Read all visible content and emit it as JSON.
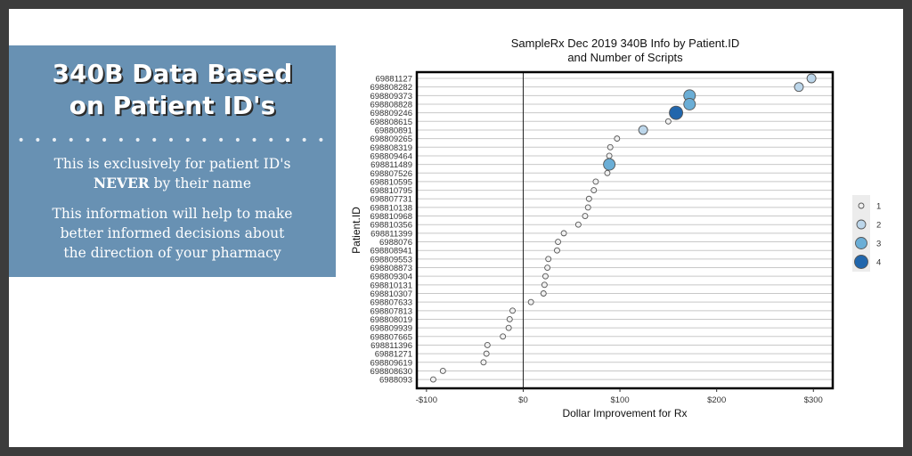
{
  "colors": {
    "frame": "#3c3c3c",
    "panel": "#6891b3",
    "accent_dark": "#2166ac"
  },
  "panel": {
    "title_line1": "340B Data Based",
    "title_line2": "on Patient ID's",
    "divider": "• • • • • • • • • • • • • • • • • • •",
    "line1": "This is exclusively for patient ID's",
    "line2_bold": "NEVER",
    "line2_rest": " by their name",
    "line3": "This information will help to make",
    "line4": "better informed decisions about",
    "line5": "the direction of your pharmacy"
  },
  "chart_data": {
    "type": "scatter",
    "title": "SampleRx Dec 2019 340B Info by Patient.ID",
    "subtitle": "and Number of Scripts",
    "xlabel": "Dollar Improvement for Rx",
    "ylabel": "Patient.ID",
    "xlim": [
      -110,
      320
    ],
    "xticks": [
      -100,
      0,
      100,
      200,
      300
    ],
    "xtick_labels": [
      "-$100",
      "$0",
      "$100",
      "$200",
      "$300"
    ],
    "vline_at": 0,
    "legend": {
      "position": "right",
      "title": "",
      "entries": [
        "1",
        "2",
        "3",
        "4"
      ]
    },
    "size_colors": [
      "#f0f0f0",
      "#bcd6ea",
      "#6baed6",
      "#2166ac"
    ],
    "points": [
      {
        "id": "69881127",
        "x": 298,
        "scripts": 2
      },
      {
        "id": "698808282",
        "x": 285,
        "scripts": 2
      },
      {
        "id": "698809373",
        "x": 172,
        "scripts": 3
      },
      {
        "id": "698808828",
        "x": 172,
        "scripts": 3
      },
      {
        "id": "698809246",
        "x": 158,
        "scripts": 4
      },
      {
        "id": "698808615",
        "x": 150,
        "scripts": 1
      },
      {
        "id": "69880891",
        "x": 124,
        "scripts": 2
      },
      {
        "id": "698809265",
        "x": 97,
        "scripts": 1
      },
      {
        "id": "698808319",
        "x": 90,
        "scripts": 1
      },
      {
        "id": "698809464",
        "x": 89,
        "scripts": 1
      },
      {
        "id": "698811489",
        "x": 89,
        "scripts": 3
      },
      {
        "id": "698807526",
        "x": 87,
        "scripts": 1
      },
      {
        "id": "698810595",
        "x": 75,
        "scripts": 1
      },
      {
        "id": "698810795",
        "x": 73,
        "scripts": 1
      },
      {
        "id": "698807731",
        "x": 68,
        "scripts": 1
      },
      {
        "id": "698810138",
        "x": 67,
        "scripts": 1
      },
      {
        "id": "698810968",
        "x": 64,
        "scripts": 1
      },
      {
        "id": "698810356",
        "x": 57,
        "scripts": 1
      },
      {
        "id": "698811399",
        "x": 42,
        "scripts": 1
      },
      {
        "id": "6988076",
        "x": 36,
        "scripts": 1
      },
      {
        "id": "698808941",
        "x": 35,
        "scripts": 1
      },
      {
        "id": "698809553",
        "x": 26,
        "scripts": 1
      },
      {
        "id": "698808873",
        "x": 25,
        "scripts": 1
      },
      {
        "id": "698809304",
        "x": 23,
        "scripts": 1
      },
      {
        "id": "698810131",
        "x": 22,
        "scripts": 1
      },
      {
        "id": "698810307",
        "x": 21,
        "scripts": 1
      },
      {
        "id": "698807633",
        "x": 8,
        "scripts": 1
      },
      {
        "id": "698807813",
        "x": -11,
        "scripts": 1
      },
      {
        "id": "698808019",
        "x": -14,
        "scripts": 1
      },
      {
        "id": "698809939",
        "x": -15,
        "scripts": 1
      },
      {
        "id": "698807665",
        "x": -21,
        "scripts": 1
      },
      {
        "id": "698811396",
        "x": -37,
        "scripts": 1
      },
      {
        "id": "69881271",
        "x": -38,
        "scripts": 1
      },
      {
        "id": "698809619",
        "x": -41,
        "scripts": 1
      },
      {
        "id": "698808630",
        "x": -83,
        "scripts": 1
      },
      {
        "id": "6988093",
        "x": -93,
        "scripts": 1
      }
    ]
  }
}
